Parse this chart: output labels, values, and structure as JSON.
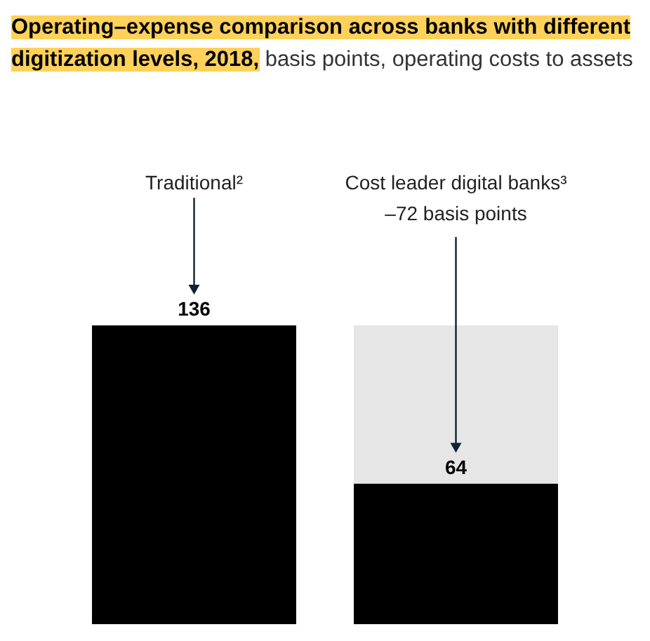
{
  "chart_data": {
    "type": "bar",
    "title": "Operating–expense comparison across banks with different digitization levels, 2018,",
    "subtitle": "basis points, operating costs to assets",
    "categories": [
      "Traditional²",
      "Cost leader digital banks³"
    ],
    "stacked": true,
    "series": [
      {
        "color": "#000000",
        "values": [
          136,
          64
        ],
        "value_labels": [
          "136",
          "64"
        ]
      },
      {
        "color": "#e6e6e6",
        "values": [
          null,
          72
        ]
      }
    ],
    "ylim": [
      0,
      136
    ],
    "tick_labels": "x",
    "annotations": [
      {
        "text": "–72 basis points",
        "x": "Cost leader digital banks³"
      }
    ]
  }
}
